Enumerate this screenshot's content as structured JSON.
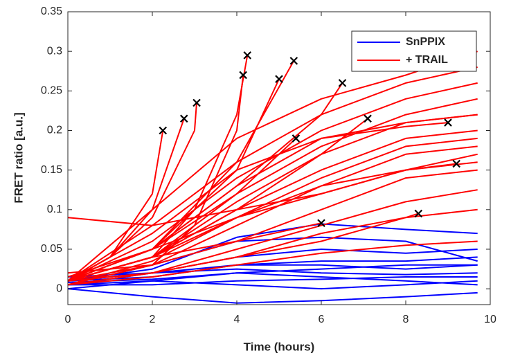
{
  "chart_data": {
    "type": "line",
    "xlabel": "Time (hours)",
    "ylabel": "FRET ratio [a.u.]",
    "xlim": [
      0,
      10
    ],
    "xticks": [
      0,
      2,
      4,
      6,
      8,
      10
    ],
    "ylim": [
      -0.02,
      0.35
    ],
    "yticks": [
      0,
      0.05,
      0.1,
      0.15,
      0.2,
      0.25,
      0.3,
      0.35
    ],
    "legend": "upper right",
    "series": [
      {
        "name": "SnPPIX",
        "color": "#0000ff",
        "lines": [
          {
            "x": [
              0,
              2,
              4,
              6,
              8,
              9.7
            ],
            "y": [
              0.005,
              0.01,
              0.02,
              0.025,
              0.03,
              0.03
            ]
          },
          {
            "x": [
              0,
              2,
              4,
              6,
              8,
              9.7
            ],
            "y": [
              0.01,
              0.015,
              0.03,
              0.035,
              0.035,
              0.04
            ]
          },
          {
            "x": [
              0,
              2,
              4,
              6,
              8,
              9.7
            ],
            "y": [
              0.005,
              0.02,
              0.04,
              0.05,
              0.045,
              0.05
            ]
          },
          {
            "x": [
              0,
              2,
              4,
              6,
              8,
              9.7
            ],
            "y": [
              0,
              -0.01,
              -0.018,
              -0.015,
              -0.01,
              -0.005
            ]
          },
          {
            "x": [
              0,
              2,
              4,
              6,
              8,
              9.7
            ],
            "y": [
              0.005,
              0.005,
              0.01,
              0.012,
              0.015,
              0.015
            ]
          },
          {
            "x": [
              0,
              2,
              4,
              6,
              8,
              9.7
            ],
            "y": [
              0.01,
              0.02,
              0.025,
              0.02,
              0.018,
              0.02
            ]
          },
          {
            "x": [
              0,
              2,
              4,
              6,
              8,
              9.7
            ],
            "y": [
              0.005,
              0.03,
              0.06,
              0.065,
              0.06,
              0.035
            ]
          },
          {
            "x": [
              0,
              2,
              4,
              6,
              8,
              9.7
            ],
            "y": [
              0.01,
              0.025,
              0.065,
              0.082,
              0.075,
              0.07
            ]
          },
          {
            "x": [
              0,
              2,
              4,
              6,
              8,
              9.7
            ],
            "y": [
              0,
              0.01,
              0.005,
              0,
              0.005,
              0.01
            ]
          },
          {
            "x": [
              0,
              2,
              4,
              6,
              8,
              9.7
            ],
            "y": [
              0.015,
              0.02,
              0.03,
              0.03,
              0.025,
              0.03
            ]
          },
          {
            "x": [
              0,
              2,
              4,
              6,
              8,
              9.7
            ],
            "y": [
              0.008,
              0.012,
              0.02,
              0.015,
              0.01,
              0.005
            ]
          }
        ]
      },
      {
        "name": "+ TRAIL",
        "color": "#ff0000",
        "lines": [
          {
            "x": [
              0,
              2,
              4,
              6,
              8,
              9.7
            ],
            "y": [
              0.01,
              0.05,
              0.12,
              0.18,
              0.22,
              0.24
            ]
          },
          {
            "x": [
              0,
              2,
              4,
              6,
              8,
              9.7
            ],
            "y": [
              0.01,
              0.04,
              0.1,
              0.15,
              0.19,
              0.2
            ]
          },
          {
            "x": [
              0,
              2,
              4,
              6,
              8,
              9.7
            ],
            "y": [
              0.005,
              0.03,
              0.08,
              0.13,
              0.17,
              0.18
            ]
          },
          {
            "x": [
              0,
              2,
              4,
              6,
              8,
              9.7
            ],
            "y": [
              0.01,
              0.06,
              0.14,
              0.2,
              0.24,
              0.26
            ]
          },
          {
            "x": [
              0,
              2,
              4,
              6,
              8,
              9.7
            ],
            "y": [
              0.01,
              0.08,
              0.16,
              0.22,
              0.26,
              0.28
            ]
          },
          {
            "x": [
              0,
              2,
              4,
              6,
              8,
              9.7
            ],
            "y": [
              0.015,
              0.05,
              0.09,
              0.12,
              0.15,
              0.16
            ]
          },
          {
            "x": [
              0,
              2,
              4,
              6,
              8,
              9.7
            ],
            "y": [
              0.005,
              0.02,
              0.05,
              0.08,
              0.11,
              0.125
            ]
          },
          {
            "x": [
              0,
              2,
              4,
              6,
              8,
              9.7
            ],
            "y": [
              0.01,
              0.02,
              0.04,
              0.06,
              0.09,
              0.1
            ]
          },
          {
            "x": [
              0,
              2,
              4,
              6,
              8,
              9.7
            ],
            "y": [
              0.005,
              0.015,
              0.03,
              0.045,
              0.055,
              0.06
            ]
          },
          {
            "x": [
              0,
              2,
              4,
              6,
              8,
              9.7
            ],
            "y": [
              0.09,
              0.08,
              0.1,
              0.12,
              0.15,
              0.17
            ]
          },
          {
            "x": [
              0,
              2,
              4,
              6,
              8,
              9.7
            ],
            "y": [
              0.01,
              0.07,
              0.15,
              0.19,
              0.21,
              0.22
            ]
          },
          {
            "x": [
              0,
              2,
              4,
              6,
              8,
              9.7
            ],
            "y": [
              0.01,
              0.04,
              0.11,
              0.17,
              0.21,
              0.22
            ]
          },
          {
            "x": [
              0,
              2,
              4,
              6,
              8,
              9.7
            ],
            "y": [
              0.005,
              0.035,
              0.09,
              0.14,
              0.18,
              0.19
            ]
          },
          {
            "x": [
              0,
              2,
              4,
              6,
              8,
              9.7
            ],
            "y": [
              0.01,
              0.1,
              0.19,
              0.24,
              0.27,
              0.3
            ]
          },
          {
            "x": [
              0,
              2,
              4,
              6,
              8,
              9.7
            ],
            "y": [
              0.02,
              0.03,
              0.06,
              0.1,
              0.14,
              0.15
            ]
          },
          {
            "x": [
              0,
              1,
              2,
              2.25
            ],
            "y": [
              0.01,
              0.04,
              0.12,
              0.2
            ],
            "marker": "x"
          },
          {
            "x": [
              0,
              1,
              2,
              2.75
            ],
            "y": [
              0.01,
              0.04,
              0.1,
              0.215
            ],
            "marker": "x"
          },
          {
            "x": [
              0,
              1,
              2,
              3,
              3.05
            ],
            "y": [
              0.01,
              0.04,
              0.09,
              0.2,
              0.235
            ],
            "marker": "x"
          },
          {
            "x": [
              0,
              2,
              3,
              4,
              4.25
            ],
            "y": [
              0.01,
              0.04,
              0.1,
              0.22,
              0.295
            ],
            "marker": "x"
          },
          {
            "x": [
              0,
              2,
              3,
              4,
              4.15
            ],
            "y": [
              0.01,
              0.03,
              0.08,
              0.2,
              0.27
            ],
            "marker": "x"
          },
          {
            "x": [
              0,
              2,
              4,
              5
            ],
            "y": [
              0.01,
              0.05,
              0.15,
              0.265
            ],
            "marker": "x"
          },
          {
            "x": [
              0,
              2,
              4,
              5.35
            ],
            "y": [
              0.01,
              0.05,
              0.16,
              0.288
            ],
            "marker": "x"
          },
          {
            "x": [
              0,
              2,
              4,
              5.4
            ],
            "y": [
              0.01,
              0.04,
              0.12,
              0.19
            ],
            "marker": "x"
          },
          {
            "x": [
              0,
              2,
              4,
              6
            ],
            "y": [
              0.01,
              0.04,
              0.06,
              0.083
            ],
            "marker": "x"
          },
          {
            "x": [
              0,
              2,
              4,
              6,
              6.5
            ],
            "y": [
              0.01,
              0.05,
              0.13,
              0.22,
              0.26
            ],
            "marker": "x"
          },
          {
            "x": [
              0,
              2,
              4,
              6,
              7.1
            ],
            "y": [
              0.01,
              0.04,
              0.1,
              0.17,
              0.215
            ],
            "marker": "x"
          },
          {
            "x": [
              0,
              2,
              4,
              6,
              8,
              8.3
            ],
            "y": [
              0.01,
              0.02,
              0.04,
              0.07,
              0.09,
              0.095
            ],
            "marker": "x"
          },
          {
            "x": [
              0,
              2,
              4,
              6,
              8,
              9.2
            ],
            "y": [
              0.01,
              0.04,
              0.09,
              0.13,
              0.15,
              0.158
            ],
            "marker": "x"
          },
          {
            "x": [
              0,
              2,
              4,
              6,
              8,
              9
            ],
            "y": [
              0.01,
              0.05,
              0.13,
              0.19,
              0.205,
              0.21
            ],
            "marker": "x"
          }
        ]
      }
    ]
  }
}
